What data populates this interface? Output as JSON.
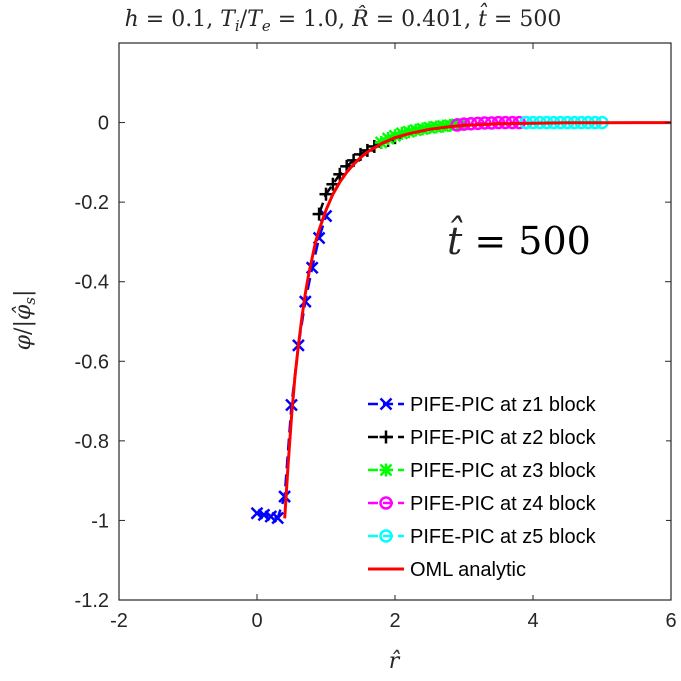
{
  "chart_data": {
    "type": "line",
    "title": "h = 0.1, Ti/Te = 1.0, R̂ = 0.401, t̂ = 500",
    "title_parts": {
      "h": "h",
      "h_val": " = 0.1, ",
      "T": "T",
      "Ti_sub": "i",
      "slash": "/",
      "Te_sub": "e",
      "T_val": " = 1.0, ",
      "R": "R̂",
      "R_val": " = 0.401, ",
      "t": "t̂",
      "t_val": " = 500"
    },
    "xlabel": "r̂",
    "ylabel_parts": {
      "phi": "φ",
      "slash": "/|",
      "phis": "φ̂",
      "sub": "s",
      "close": "|"
    },
    "annotation": {
      "t": "t̂",
      "rest": " = 500"
    },
    "xlim": [
      -2,
      6
    ],
    "ylim": [
      -1.2,
      0.2
    ],
    "xticks": [
      -2,
      0,
      2,
      4,
      6
    ],
    "xtick_labels": [
      "-2",
      "0",
      "2",
      "4",
      "6"
    ],
    "yticks": [
      -1.2,
      -1,
      -0.8,
      -0.6,
      -0.4,
      -0.2,
      0
    ],
    "ytick_labels": [
      "-1.2",
      "-1",
      "-0.8",
      "-0.6",
      "-0.4",
      "-0.2",
      "0"
    ],
    "grid": false,
    "legend_position": "bottom-right",
    "series": [
      {
        "name": "PIFE-PIC at z1 block",
        "color": "#0000ff",
        "marker": "x",
        "dash": true,
        "x": [
          0.0,
          0.1,
          0.2,
          0.3,
          0.4,
          0.5,
          0.6,
          0.7,
          0.8,
          0.9,
          1.0
        ],
        "y": [
          -0.982,
          -0.986,
          -0.99,
          -0.994,
          -0.94,
          -0.71,
          -0.56,
          -0.45,
          -0.365,
          -0.29,
          -0.235
        ]
      },
      {
        "name": "PIFE-PIC at z2 block",
        "color": "#000000",
        "marker": "+",
        "dash": true,
        "x": [
          0.9,
          1.0,
          1.1,
          1.2,
          1.3,
          1.4,
          1.5,
          1.6,
          1.7,
          1.8,
          1.9,
          2.0
        ],
        "y": [
          -0.23,
          -0.18,
          -0.155,
          -0.13,
          -0.11,
          -0.095,
          -0.08,
          -0.07,
          -0.06,
          -0.05,
          -0.045,
          -0.038
        ]
      },
      {
        "name": "PIFE-PIC at z3 block",
        "color": "#00ff00",
        "marker": "*",
        "dash": true,
        "x": [
          1.8,
          1.9,
          2.0,
          2.1,
          2.2,
          2.3,
          2.4,
          2.5,
          2.6,
          2.7,
          2.8,
          2.9,
          3.0
        ],
        "y": [
          -0.05,
          -0.04,
          -0.033,
          -0.027,
          -0.023,
          -0.019,
          -0.016,
          -0.013,
          -0.011,
          -0.009,
          -0.007,
          -0.005,
          -0.004
        ]
      },
      {
        "name": "PIFE-PIC at z4 block",
        "color": "#ff00ff",
        "marker": "o",
        "dash": true,
        "x": [
          2.9,
          3.0,
          3.1,
          3.2,
          3.3,
          3.4,
          3.5,
          3.6,
          3.7,
          3.8,
          3.9
        ],
        "y": [
          -0.006,
          -0.004,
          -0.003,
          -0.002,
          -0.001,
          -0.001,
          0.0,
          0.0,
          0.0,
          0.0,
          0.0
        ]
      },
      {
        "name": "PIFE-PIC at z5 block",
        "color": "#00ffff",
        "marker": "o",
        "dash": true,
        "x": [
          3.9,
          4.0,
          4.1,
          4.2,
          4.3,
          4.4,
          4.5,
          4.6,
          4.7,
          4.8,
          4.9,
          5.0
        ],
        "y": [
          0.0,
          0.0,
          0.0,
          0.0,
          0.0,
          0.0,
          0.0,
          0.0,
          0.0,
          0.0,
          0.0,
          0.0
        ]
      },
      {
        "name": "OML analytic",
        "color": "#ff0000",
        "marker": "none",
        "dash": false,
        "x": [
          0.401,
          0.45,
          0.5,
          0.55,
          0.6,
          0.65,
          0.7,
          0.75,
          0.8,
          0.85,
          0.9,
          1.0,
          1.1,
          1.2,
          1.3,
          1.4,
          1.5,
          1.6,
          1.8,
          2.0,
          2.2,
          2.5,
          2.8,
          3.0,
          3.5,
          4.0,
          4.5,
          5.0,
          5.5,
          6.0
        ],
        "y": [
          -0.995,
          -0.86,
          -0.74,
          -0.64,
          -0.56,
          -0.49,
          -0.43,
          -0.38,
          -0.34,
          -0.3,
          -0.27,
          -0.22,
          -0.18,
          -0.15,
          -0.125,
          -0.105,
          -0.088,
          -0.074,
          -0.053,
          -0.038,
          -0.028,
          -0.017,
          -0.01,
          -0.007,
          -0.003,
          -0.0015,
          -0.0007,
          -0.0003,
          -0.0001,
          0.0
        ]
      }
    ]
  }
}
